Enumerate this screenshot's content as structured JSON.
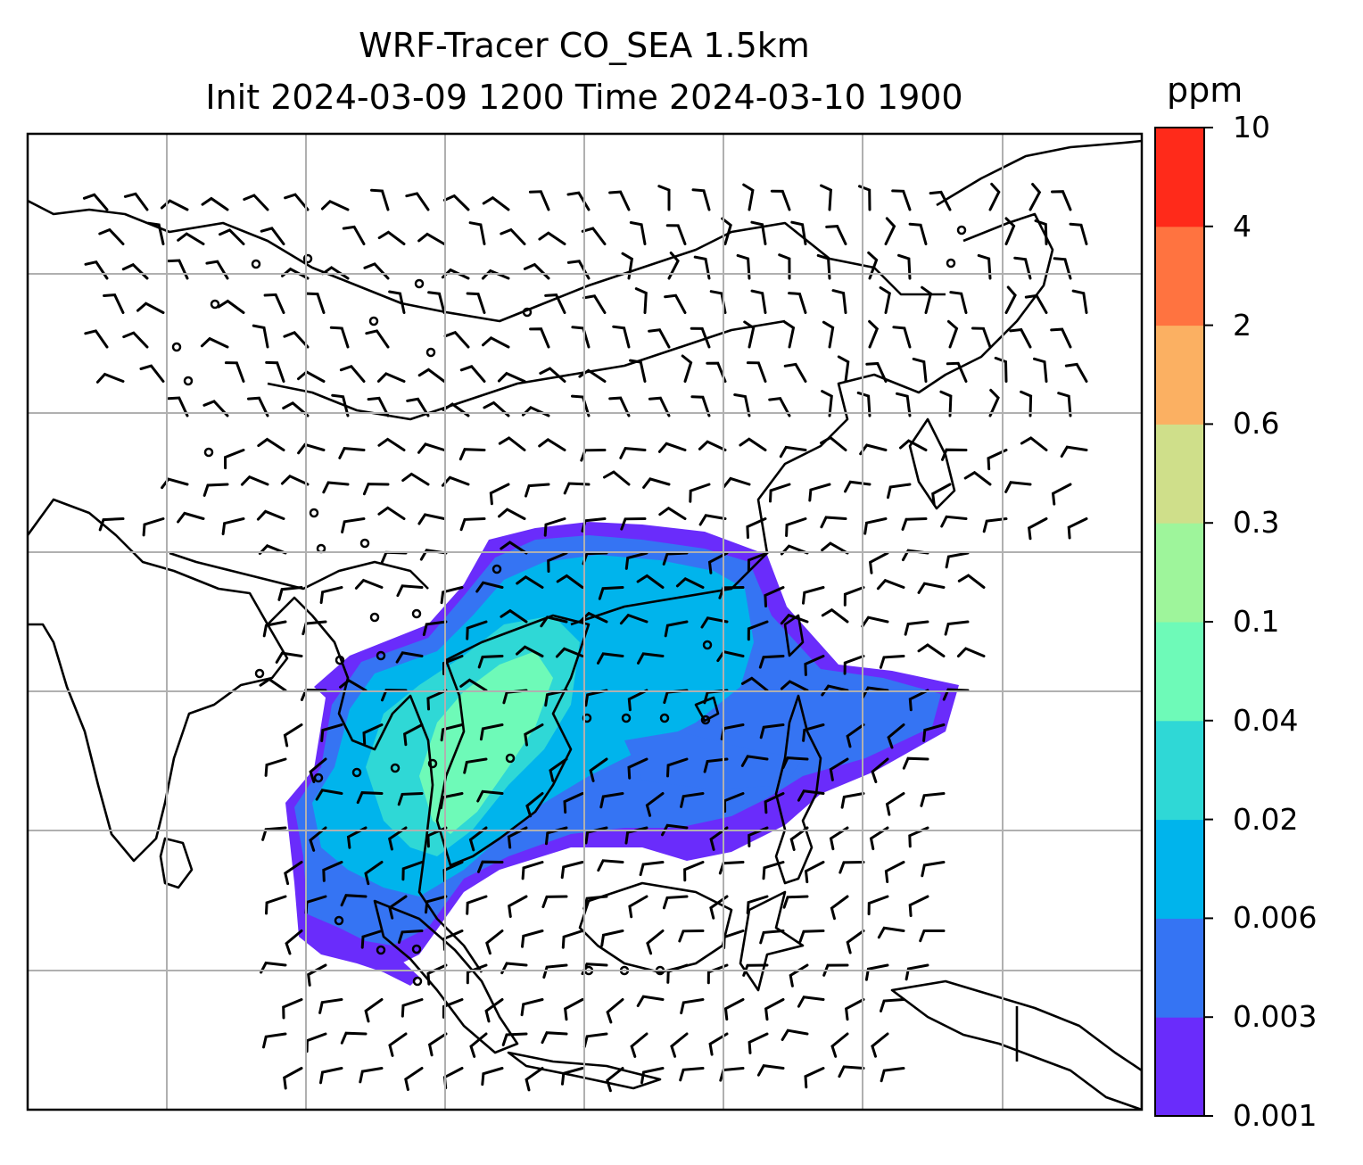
{
  "title": {
    "line1": "WRF-Tracer CO_SEA 1.5km",
    "line2": "Init 2024-03-09 1200 Time 2024-03-10 1900"
  },
  "colorbar": {
    "unit": "ppm",
    "ticks": [
      "0.001",
      "0.003",
      "0.006",
      "0.02",
      "0.04",
      "0.1",
      "0.3",
      "0.6",
      "2",
      "4",
      "10"
    ],
    "colors": [
      "#6a2cfb",
      "#3574f3",
      "#00b4ec",
      "#2fd8d6",
      "#6efab8",
      "#9ef59b",
      "#cfdf8a",
      "#fbb062",
      "#ff7340",
      "#ff2a1a"
    ]
  },
  "map": {
    "projection": "lat-lon",
    "gridlines": true,
    "coastlines": true,
    "wind_barbs": true,
    "field": "CO tracer concentration"
  }
}
